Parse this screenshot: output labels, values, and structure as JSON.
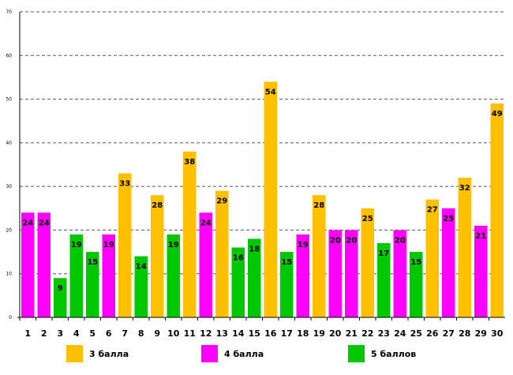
{
  "chart_data": {
    "type": "bar",
    "title": "",
    "xlabel": "",
    "ylabel": "",
    "ylim": [
      0,
      70
    ],
    "yticks": [
      0,
      10,
      20,
      30,
      40,
      50,
      60,
      70
    ],
    "grid": "horizontal dashed",
    "legend_placement": "bottom",
    "categories": [
      "1",
      "2",
      "3",
      "4",
      "5",
      "6",
      "7",
      "8",
      "9",
      "10",
      "11",
      "12",
      "13",
      "14",
      "15",
      "16",
      "17",
      "18",
      "19",
      "20",
      "21",
      "22",
      "23",
      "24",
      "25",
      "26",
      "27",
      "28",
      "29",
      "30"
    ],
    "values": [
      24,
      24,
      9,
      19,
      15,
      19,
      33,
      14,
      28,
      19,
      38,
      24,
      29,
      16,
      18,
      54,
      15,
      19,
      28,
      20,
      20,
      25,
      17,
      20,
      15,
      27,
      25,
      32,
      21,
      49
    ],
    "groups": [
      "4",
      "4",
      "5",
      "5",
      "5",
      "4",
      "3",
      "5",
      "3",
      "5",
      "3",
      "4",
      "3",
      "5",
      "5",
      "3",
      "5",
      "4",
      "3",
      "4",
      "4",
      "3",
      "5",
      "4",
      "5",
      "3",
      "4",
      "3",
      "4",
      "3"
    ],
    "series": [
      {
        "key": "3",
        "name": "3 балла",
        "color": "#FFC000"
      },
      {
        "key": "4",
        "name": "4 балла",
        "color": "#FF00FF"
      },
      {
        "key": "5",
        "name": "5 баллов",
        "color": "#00C800"
      }
    ]
  }
}
